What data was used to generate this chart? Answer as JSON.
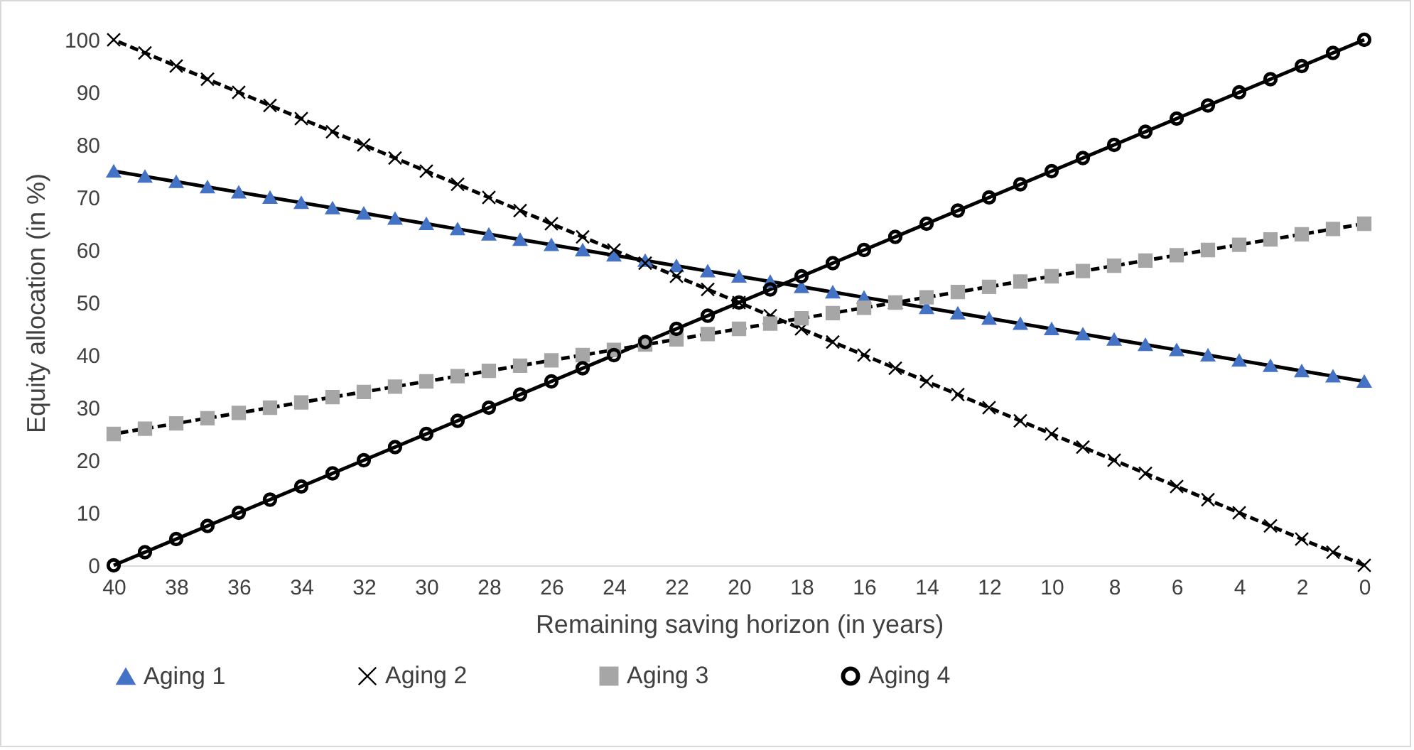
{
  "chart_data": {
    "type": "line",
    "xlabel": "Remaining saving horizon (in years)",
    "ylabel": "Equity allocation (in %)",
    "x": [
      40,
      39,
      38,
      37,
      36,
      35,
      34,
      33,
      32,
      31,
      30,
      29,
      28,
      27,
      26,
      25,
      24,
      23,
      22,
      21,
      20,
      19,
      18,
      17,
      16,
      15,
      14,
      13,
      12,
      11,
      10,
      9,
      8,
      7,
      6,
      5,
      4,
      3,
      2,
      1,
      0
    ],
    "xlim": [
      40,
      0
    ],
    "xticks": [
      40,
      38,
      36,
      34,
      32,
      30,
      28,
      26,
      24,
      22,
      20,
      18,
      16,
      14,
      12,
      10,
      8,
      6,
      4,
      2,
      0
    ],
    "ylim": [
      0,
      100
    ],
    "yticks": [
      0,
      10,
      20,
      30,
      40,
      50,
      60,
      70,
      80,
      90,
      100
    ],
    "grid": false,
    "legend": "bottom",
    "series": [
      {
        "name": "Aging 1",
        "color": "#4472c4",
        "marker": "triangle",
        "line_style": "solid",
        "values": [
          75,
          74,
          73,
          72,
          71,
          70,
          69,
          68,
          67,
          66,
          65,
          64,
          63,
          62,
          61,
          60,
          59,
          58,
          57,
          56,
          55,
          54,
          53,
          52,
          51,
          50,
          49,
          48,
          47,
          46,
          45,
          44,
          43,
          42,
          41,
          40,
          39,
          38,
          37,
          36,
          35
        ]
      },
      {
        "name": "Aging 2",
        "color": "#000000",
        "marker": "cross",
        "line_style": "dashed",
        "values": [
          100,
          97.5,
          95,
          92.5,
          90,
          87.5,
          85,
          82.5,
          80,
          77.5,
          75,
          72.5,
          70,
          67.5,
          65,
          62.5,
          60,
          57.5,
          55,
          52.5,
          50,
          47.5,
          45,
          42.5,
          40,
          37.5,
          35,
          32.5,
          30,
          27.5,
          25,
          22.5,
          20,
          17.5,
          15,
          12.5,
          10,
          7.5,
          5,
          2.5,
          0
        ]
      },
      {
        "name": "Aging 3",
        "color": "#a6a6a6",
        "marker": "square",
        "line_style": "dashed",
        "values": [
          25,
          26,
          27,
          28,
          29,
          30,
          31,
          32,
          33,
          34,
          35,
          36,
          37,
          38,
          39,
          40,
          41,
          42,
          43,
          44,
          45,
          46,
          47,
          48,
          49,
          50,
          51,
          52,
          53,
          54,
          55,
          56,
          57,
          58,
          59,
          60,
          61,
          62,
          63,
          64,
          65
        ]
      },
      {
        "name": "Aging 4",
        "color": "#000000",
        "marker": "circle",
        "line_style": "solid",
        "values": [
          0,
          2.5,
          5,
          7.5,
          10,
          12.5,
          15,
          17.5,
          20,
          22.5,
          25,
          27.5,
          30,
          32.5,
          35,
          37.5,
          40,
          42.5,
          45,
          47.5,
          50,
          52.5,
          55,
          57.5,
          60,
          62.5,
          65,
          67.5,
          70,
          72.5,
          75,
          77.5,
          80,
          82.5,
          85,
          87.5,
          90,
          92.5,
          95,
          97.5,
          100
        ]
      }
    ]
  }
}
